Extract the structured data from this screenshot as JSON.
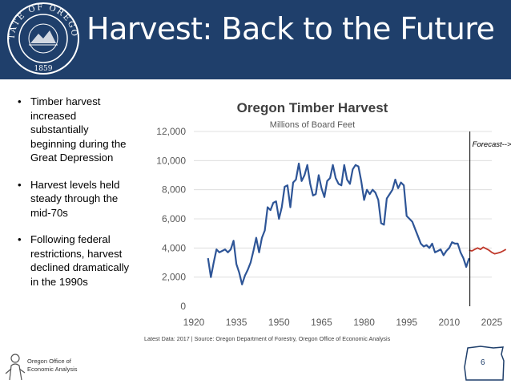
{
  "slide": {
    "title": "Harvest: Back to the Future",
    "page_number": "6",
    "bullets": [
      "Timber harvest increased substantially beginning during the Great Depression",
      "Harvest levels held steady through the mid-70s",
      "Following federal restrictions, harvest declined dramatically in the 1990s"
    ],
    "footer": {
      "line1": "Oregon Office of",
      "line2": "Economic Analysis"
    },
    "seal": {
      "top_text": "STATE OF OREGON",
      "year": "1859"
    }
  },
  "colors": {
    "header": "#1f3f6b",
    "series_actual": "#2e5597",
    "series_forecast": "#c0392b"
  },
  "chart_data": {
    "type": "line",
    "title": "Oregon Timber Harvest",
    "subtitle": "Millions of Board Feet",
    "source": "Latest Data: 2017  |  Source: Oregon Department of Forestry, Oregon Office of Economic Analysis",
    "annotation": "Forecast-->",
    "forecast_start": 2017,
    "xlim": [
      1920,
      2025
    ],
    "ylim": [
      0,
      12000
    ],
    "x_ticks": [
      "1920",
      "1935",
      "1950",
      "1965",
      "1980",
      "1995",
      "2010",
      "2025"
    ],
    "y_ticks": [
      "0",
      "2,000",
      "4,000",
      "6,000",
      "8,000",
      "10,000",
      "12,000"
    ],
    "grid": true,
    "series": [
      {
        "x": [
          1925,
          1926,
          1927,
          1928,
          1929,
          1930,
          1931,
          1932,
          1933,
          1934,
          1935,
          1936,
          1937,
          1938,
          1939,
          1940,
          1941,
          1942,
          1943,
          1944,
          1945,
          1946,
          1947,
          1948,
          1949,
          1950,
          1951,
          1952,
          1953,
          1954,
          1955,
          1956,
          1957,
          1958,
          1959,
          1960,
          1961,
          1962,
          1963,
          1964,
          1965,
          1966,
          1967,
          1968,
          1969,
          1970,
          1971,
          1972,
          1973,
          1974,
          1975,
          1976,
          1977,
          1978,
          1979,
          1980,
          1981,
          1982,
          1983,
          1984,
          1985,
          1986,
          1987,
          1988,
          1989,
          1990,
          1991,
          1992,
          1993,
          1994,
          1995,
          1996,
          1997,
          1998,
          1999,
          2000,
          2001,
          2002,
          2003,
          2004,
          2005,
          2006,
          2007,
          2008,
          2009,
          2010,
          2011,
          2012,
          2013,
          2014,
          2015,
          2016,
          2017
        ],
        "values": [
          3300,
          2000,
          3000,
          3900,
          3700,
          3800,
          3900,
          3700,
          3900,
          4500,
          2900,
          2300,
          1500,
          2100,
          2500,
          3000,
          3800,
          4700,
          3700,
          4700,
          5200,
          6800,
          6600,
          7100,
          7200,
          6000,
          6800,
          8200,
          8300,
          6800,
          8500,
          8700,
          9800,
          8600,
          9000,
          9700,
          8400,
          7600,
          7700,
          9000,
          8100,
          7500,
          8600,
          8800,
          9700,
          8800,
          8400,
          8300,
          9700,
          8700,
          8400,
          9400,
          9700,
          9600,
          8600,
          7300,
          8000,
          7700,
          8000,
          7800,
          7300,
          5700,
          5600,
          7400,
          7700,
          8000,
          8700,
          8100,
          8500,
          8300,
          6200,
          6000,
          5800,
          5300,
          4800,
          4300,
          4100,
          4200,
          4000,
          4300,
          3700,
          3800,
          3900,
          3500,
          3800,
          4000,
          4400,
          4300,
          4300,
          3700,
          3300,
          2700,
          3300
        ]
      },
      {
        "x": [
          2017,
          2018,
          2019,
          2020,
          2021,
          2022,
          2023,
          2024,
          2025,
          2026,
          2027,
          2028,
          2029,
          2030
        ],
        "values": [
          3850,
          3800,
          3900,
          4000,
          3900,
          4050,
          3950,
          3850,
          3700,
          3600,
          3650,
          3700,
          3800,
          3900
        ]
      }
    ]
  }
}
